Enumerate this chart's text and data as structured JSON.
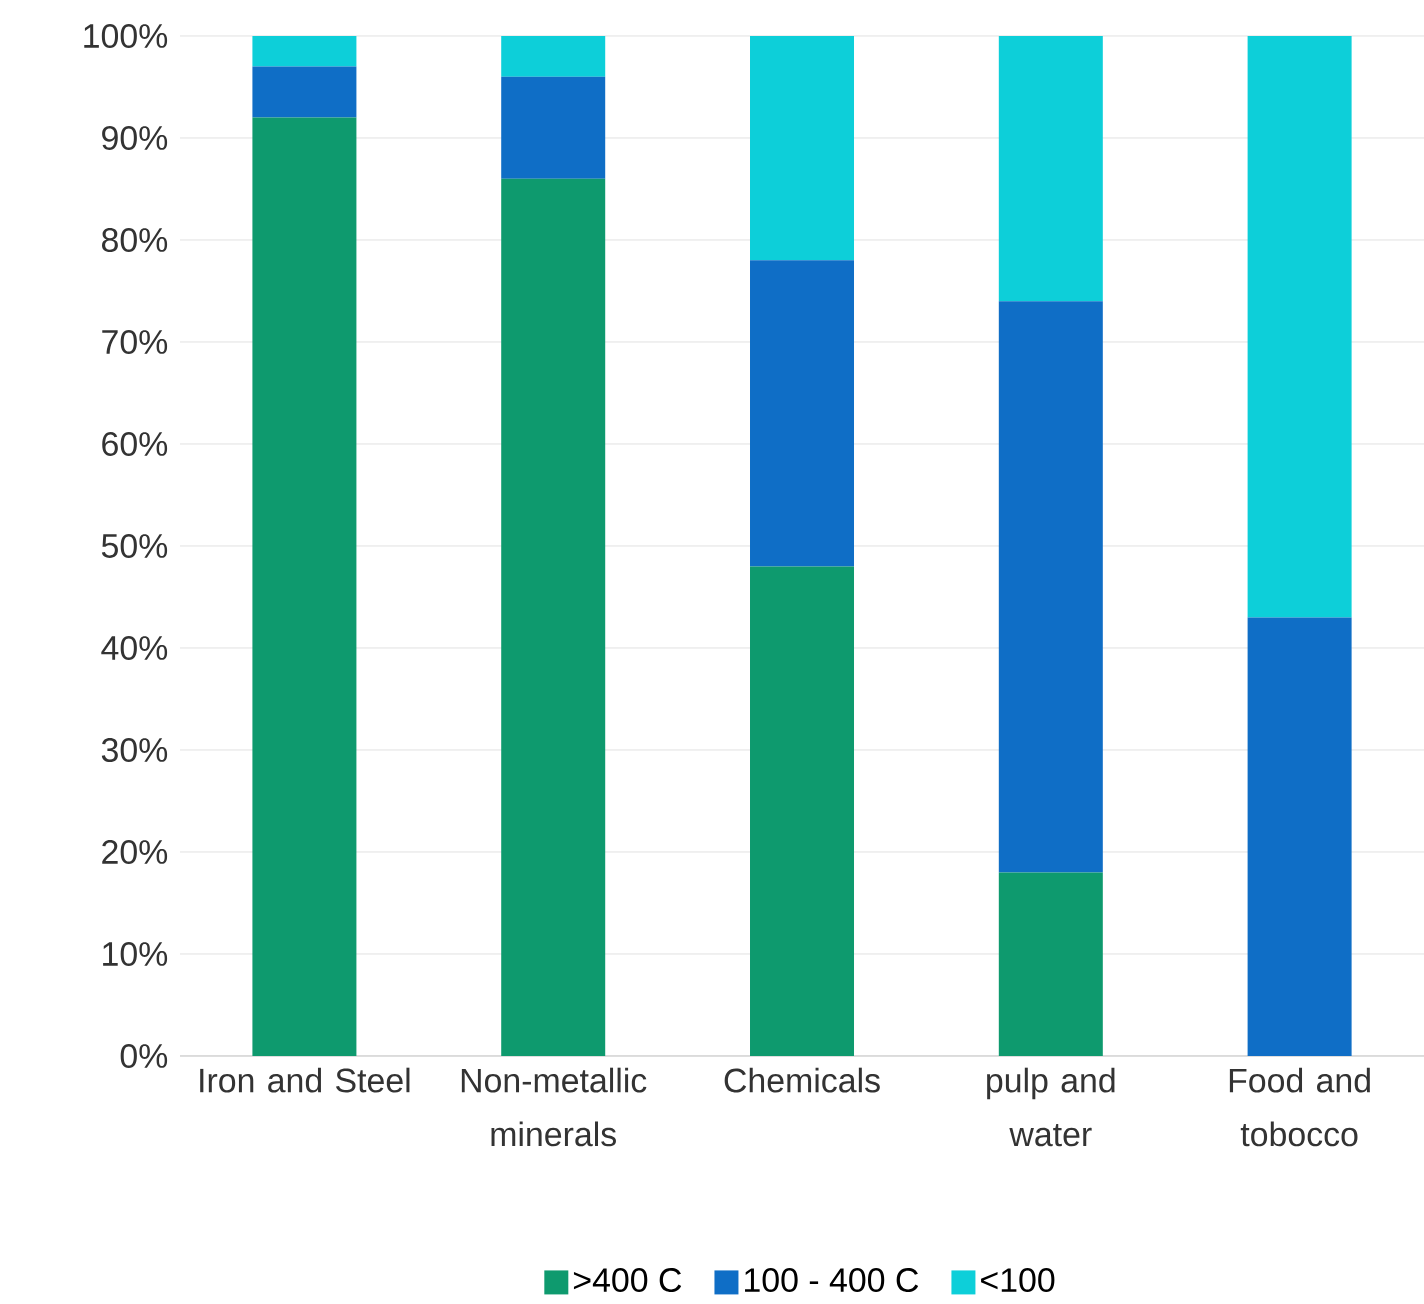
{
  "chart_data": {
    "type": "bar",
    "stacked": true,
    "categories": [
      "Iron and Steel",
      "Non-metallic minerals",
      "Chemicals",
      "pulp and water",
      "Food and tobocco"
    ],
    "series": [
      {
        "name": ">400 C",
        "color": "#0e9a6e",
        "values": [
          92,
          86,
          48,
          18,
          0
        ]
      },
      {
        "name": "100 - 400 C",
        "color": "#0f6ec6",
        "values": [
          5,
          10,
          30,
          56,
          43
        ]
      },
      {
        "name": "<100",
        "color": "#0dcfd9",
        "values": [
          3,
          4,
          22,
          26,
          57
        ]
      }
    ],
    "ylim": [
      0,
      100
    ],
    "yticks": [
      {
        "value": 0,
        "label": "0%"
      },
      {
        "value": 10,
        "label": "10%"
      },
      {
        "value": 20,
        "label": "20%"
      },
      {
        "value": 30,
        "label": "30%"
      },
      {
        "value": 40,
        "label": "40%"
      },
      {
        "value": 50,
        "label": "50%"
      },
      {
        "value": 60,
        "label": "60%"
      },
      {
        "value": 70,
        "label": "70%"
      },
      {
        "value": 80,
        "label": "80%"
      },
      {
        "value": 90,
        "label": "90%"
      },
      {
        "value": 100,
        "label": "100%"
      }
    ],
    "grid": "y",
    "legend": "bottom"
  }
}
